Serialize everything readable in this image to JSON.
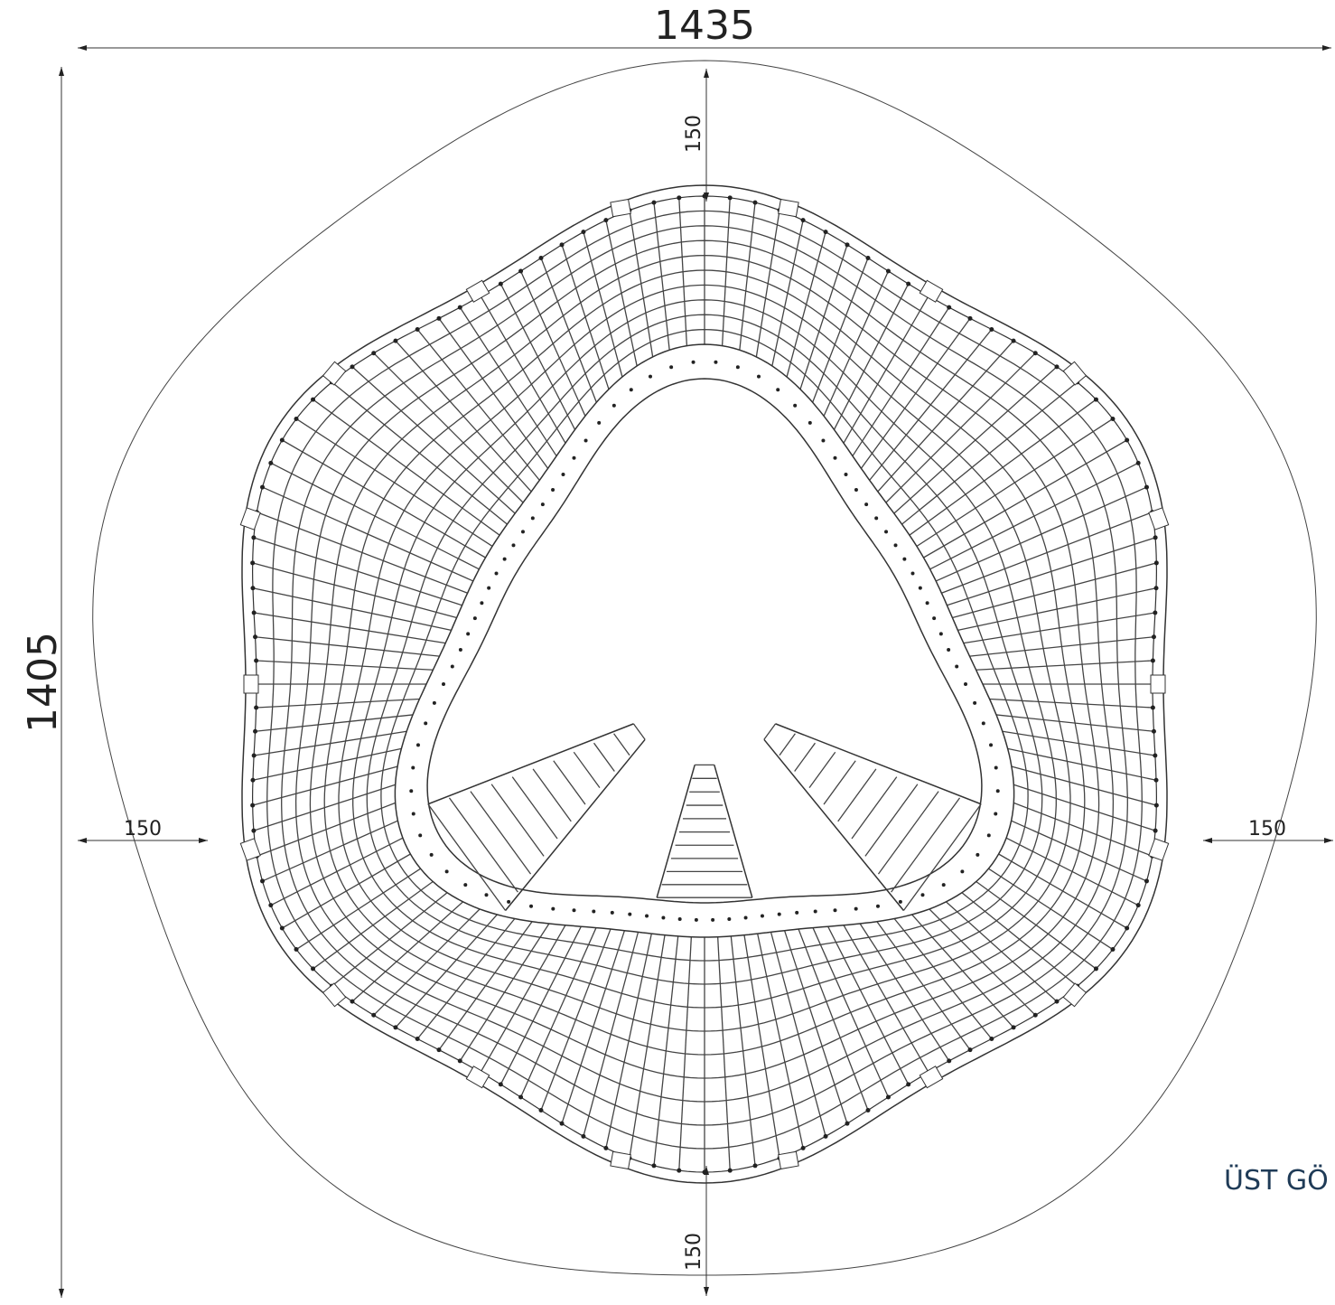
{
  "dimensions": {
    "width": 1435,
    "height": 1405,
    "clearance_top": 150,
    "clearance_bottom": 150,
    "clearance_left": 150,
    "clearance_right": 150
  },
  "view_label": "ÜST GÖ"
}
